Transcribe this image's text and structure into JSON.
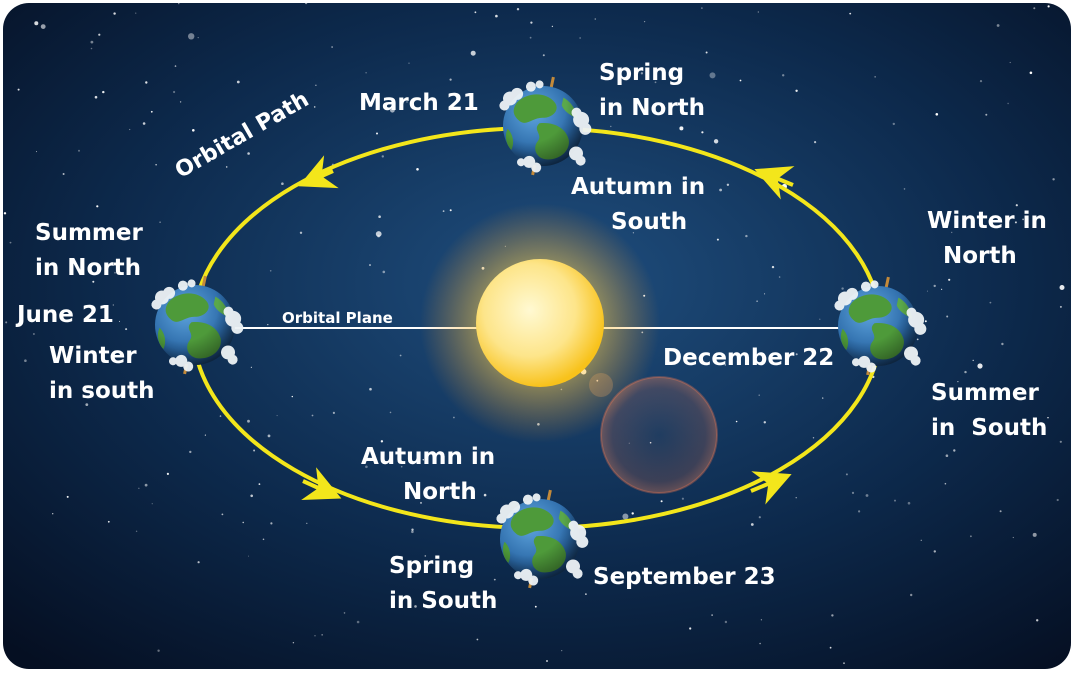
{
  "diagram": {
    "orbital_path_label": "Orbital Path",
    "orbital_plane_label": "Orbital Plane",
    "positions": {
      "top": {
        "date": "March 21",
        "north_season": [
          "Spring",
          "in North"
        ],
        "south_season": [
          "Autumn in",
          "South"
        ]
      },
      "left": {
        "date": "June 21",
        "north_season": [
          "Summer",
          "in North"
        ],
        "south_season": [
          "Winter",
          "in south"
        ]
      },
      "right": {
        "date": "December 22",
        "north_season": [
          "Winter in",
          "North"
        ],
        "south_season": [
          "Summer",
          "in  South"
        ]
      },
      "bottom": {
        "date": "September 23",
        "north_season": [
          "Autumn in",
          "North"
        ],
        "south_season": [
          "Spring",
          "in South"
        ]
      }
    },
    "colors": {
      "sky_inner": "#1d4a78",
      "sky_outer": "#050f22",
      "orbit": "#f3e61b",
      "sun_core": "#fff2a8",
      "sun_edge": "#f9c21a",
      "ocean": "#2e6fb0",
      "land": "#4e9a3a",
      "cloud": "#eef3f6",
      "text": "#ffffff"
    },
    "icons": [
      "sun-icon",
      "earth-icon",
      "orbit-arrow-icon"
    ]
  }
}
